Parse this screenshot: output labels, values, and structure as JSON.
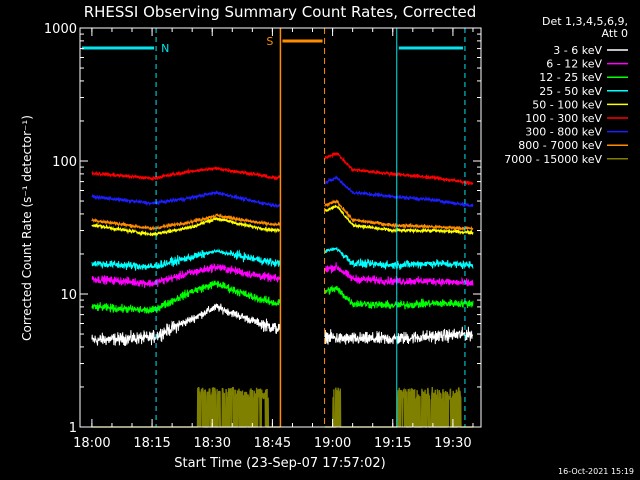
{
  "colors": {
    "background": "#000000",
    "axis": "#ffffff",
    "night": "#00e5ee",
    "saa": "#ff8c00"
  },
  "chart_data": {
    "type": "line",
    "title": "RHESSI Observing Summary Count Rates, Corrected",
    "xlabel": "Start Time (23-Sep-07 17:57:02)",
    "ylabel": "Corrected Count Rate (s⁻¹ detector⁻¹)",
    "y_scale": "log",
    "ylim": [
      1,
      1000
    ],
    "xlim": [
      "17:57:02",
      "19:37:00"
    ],
    "x_ticks": [
      "18:00",
      "18:15",
      "18:30",
      "18:45",
      "19:00",
      "19:15",
      "19:30"
    ],
    "y_ticks": [
      "1",
      "10",
      "100",
      "1000"
    ],
    "legend": {
      "placement": "outside-right",
      "header": [
        "Det 1,3,4,5,6,9,",
        "Att 0"
      ]
    },
    "series": [
      {
        "name": "3 - 6 keV",
        "color": "#ffffff",
        "x": [
          "18:00",
          "18:15",
          "18:25",
          "18:31",
          "18:40",
          "18:46",
          "19:02",
          "19:15",
          "19:25",
          "19:35"
        ],
        "y": [
          4.5,
          4.7,
          6.5,
          8.0,
          6.3,
          5.5,
          4.6,
          4.6,
          4.8,
          5.0
        ]
      },
      {
        "name": "6 - 12 keV",
        "color": "#ff00ff",
        "x": [
          "18:00",
          "18:15",
          "18:25",
          "18:31",
          "18:40",
          "18:46",
          "19:01",
          "19:05",
          "19:15",
          "19:25",
          "19:35"
        ],
        "y": [
          13.0,
          12.0,
          14.5,
          16.0,
          14.0,
          13.0,
          16.0,
          13.0,
          12.5,
          12.5,
          12.0
        ]
      },
      {
        "name": "12 - 25 keV",
        "color": "#00ff00",
        "x": [
          "18:00",
          "18:15",
          "18:25",
          "18:31",
          "18:40",
          "18:46",
          "19:01",
          "19:05",
          "19:15",
          "19:25",
          "19:35"
        ],
        "y": [
          8.0,
          7.5,
          10.5,
          12.0,
          9.5,
          8.5,
          11.0,
          8.5,
          8.2,
          8.5,
          8.5
        ]
      },
      {
        "name": "25 - 50 keV",
        "color": "#00ffff",
        "x": [
          "18:00",
          "18:15",
          "18:25",
          "18:31",
          "18:40",
          "18:46",
          "19:01",
          "19:05",
          "19:15",
          "19:25",
          "19:35"
        ],
        "y": [
          17.0,
          16.0,
          19.0,
          21.0,
          18.5,
          17.0,
          22.0,
          17.0,
          16.5,
          17.0,
          16.5
        ]
      },
      {
        "name": "50 - 100 keV",
        "color": "#ffff00",
        "x": [
          "18:00",
          "18:15",
          "18:25",
          "18:31",
          "18:40",
          "18:46",
          "19:01",
          "19:05",
          "19:15",
          "19:25",
          "19:35"
        ],
        "y": [
          33.0,
          28.0,
          32.0,
          37.0,
          32.0,
          30.0,
          46.0,
          33.0,
          30.0,
          30.0,
          29.0
        ]
      },
      {
        "name": "100 - 300 keV",
        "color": "#ff0000",
        "x": [
          "18:00",
          "18:15",
          "18:25",
          "18:31",
          "18:40",
          "18:46",
          "19:01",
          "19:05",
          "19:15",
          "19:25",
          "19:35"
        ],
        "y": [
          81.0,
          74.0,
          84.0,
          88.0,
          80.0,
          74.0,
          115.0,
          86.0,
          80.0,
          75.0,
          68.0
        ]
      },
      {
        "name": "300 - 800 keV",
        "color": "#1e1eff",
        "x": [
          "18:00",
          "18:15",
          "18:25",
          "18:31",
          "18:40",
          "18:46",
          "19:01",
          "19:05",
          "19:15",
          "19:25",
          "19:35"
        ],
        "y": [
          54.0,
          48.0,
          53.0,
          58.0,
          50.0,
          46.0,
          75.0,
          58.0,
          54.0,
          51.0,
          46.0
        ]
      },
      {
        "name": "800 - 7000 keV",
        "color": "#ff8c00",
        "x": [
          "18:00",
          "18:15",
          "18:25",
          "18:31",
          "18:40",
          "18:46",
          "19:01",
          "19:05",
          "19:15",
          "19:25",
          "19:35"
        ],
        "y": [
          36.0,
          31.0,
          35.0,
          39.0,
          35.0,
          33.0,
          50.0,
          36.0,
          33.0,
          32.0,
          31.0
        ]
      },
      {
        "name": "7000 - 15000 keV",
        "color": "#808000",
        "x": [
          "18:00",
          "18:15",
          "18:25",
          "18:31",
          "18:40",
          "18:46",
          "19:01",
          "19:15",
          "19:25",
          "19:35"
        ],
        "y": [
          1.0,
          1.0,
          1.0,
          1.0,
          1.0,
          1.0,
          1.0,
          1.0,
          1.0,
          1.0
        ]
      }
    ],
    "annotations": {
      "night_periods": [
        {
          "label": "N",
          "start": "17:57:02",
          "end": "18:16"
        },
        {
          "label": "",
          "start": "19:16",
          "end": "19:33"
        }
      ],
      "saa_periods": [
        {
          "label": "S",
          "start": "18:47",
          "end": "18:58"
        }
      ]
    },
    "timestamp": "16-Oct-2021 15:19"
  }
}
